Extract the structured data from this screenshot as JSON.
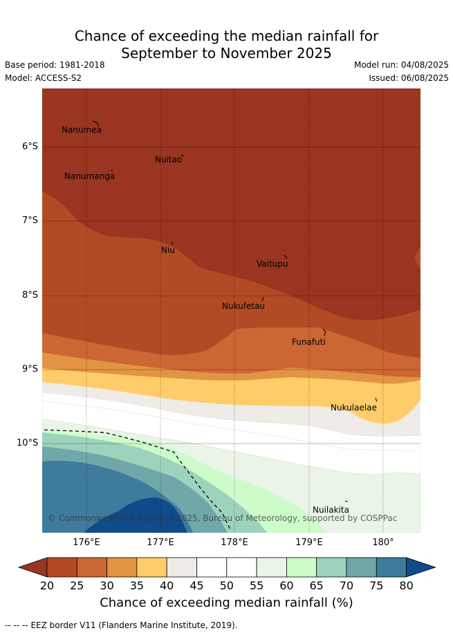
{
  "header": {
    "title_line1": "Chance of exceeding the median rainfall for",
    "title_line2": "September to November 2025",
    "base_period": "Base period: 1981-2018",
    "model": "Model: ACCESS-S2",
    "model_run": "Model run: 04/08/2025",
    "issued": "Issued: 06/08/2025"
  },
  "map": {
    "y_ticks": [
      "6°S",
      "7°S",
      "8°S",
      "9°S",
      "10°S"
    ],
    "x_ticks": [
      "176°E",
      "177°E",
      "178°E",
      "179°E",
      "180°"
    ],
    "places": [
      "Nanumea",
      "Nuitao",
      "Nanumanga",
      "Niu",
      "Vaitupu",
      "Nukufetau",
      "Funafuti",
      "Nukulaelae",
      "Nuilakita"
    ],
    "copyright": "© Commonwealth of Australia 2025, Bureau of Meteorology, supported by COSPPac",
    "eez_line_style": "dashed"
  },
  "colorbar": {
    "ticks": [
      "20",
      "25",
      "30",
      "35",
      "40",
      "45",
      "50",
      "55",
      "60",
      "65",
      "70",
      "75",
      "80"
    ],
    "label": "Chance of exceeding median rainfall (%)",
    "colors": [
      "#993520",
      "#b24a26",
      "#cc6633",
      "#e29443",
      "#fecd6a",
      "#efebe7",
      "#ffffff",
      "#ffffff",
      "#eaf4e7",
      "#cdfcca",
      "#9dd2bc",
      "#70a7a9",
      "#3f7b9c",
      "#0f4b8a"
    ]
  },
  "footer": {
    "eez_legend_symbol": "-- -- --",
    "eez_legend": "EEZ border V11 (Flanders Marine Institute, 2019)."
  }
}
